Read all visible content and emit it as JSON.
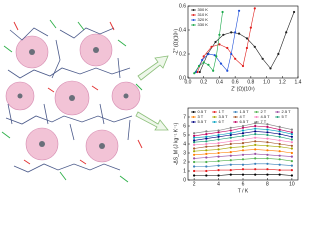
{
  "chart_data": [
    {
      "type": "scatter",
      "xlabel": "Z' (Ω)(10⁵)",
      "ylabel": "-Z'' (Ω)(10⁵)",
      "xlim": [
        0,
        1.4
      ],
      "ylim": [
        0,
        0.6
      ],
      "xticks": [
        {
          "value": 0,
          "label": "0.0"
        },
        0.2,
        0.4,
        0.6,
        0.8,
        {
          "value": 1,
          "label": "1.0"
        },
        1.2,
        1.4
      ],
      "yticks": [
        {
          "value": 0,
          "label": "0.0"
        },
        0.2,
        0.4,
        0.6
      ],
      "legend": "upper-left",
      "series": [
        {
          "name": "300 K",
          "color": "#222222",
          "x": [
            0.15,
            0.25,
            0.35,
            0.45,
            0.55,
            0.65,
            0.75,
            0.85,
            0.95,
            1.05,
            1.15,
            1.25,
            1.35
          ],
          "values": [
            0.05,
            0.2,
            0.3,
            0.36,
            0.38,
            0.37,
            0.33,
            0.26,
            0.16,
            0.08,
            0.2,
            0.38,
            0.55
          ]
        },
        {
          "name": "310 K",
          "color": "#e0201e",
          "x": [
            0.12,
            0.2,
            0.3,
            0.4,
            0.5,
            0.6,
            0.7,
            0.75,
            0.8,
            0.85
          ],
          "values": [
            0.05,
            0.18,
            0.26,
            0.28,
            0.25,
            0.16,
            0.1,
            0.25,
            0.42,
            0.58
          ]
        },
        {
          "name": "320 K",
          "color": "#1f4fd8",
          "x": [
            0.1,
            0.18,
            0.26,
            0.34,
            0.42,
            0.5,
            0.55,
            0.6,
            0.65
          ],
          "values": [
            0.05,
            0.15,
            0.2,
            0.19,
            0.12,
            0.06,
            0.2,
            0.38,
            0.56
          ]
        },
        {
          "name": "330 K",
          "color": "#1aa84a",
          "x": [
            0.08,
            0.14,
            0.2,
            0.26,
            0.32,
            0.36,
            0.4,
            0.44
          ],
          "values": [
            0.04,
            0.1,
            0.13,
            0.11,
            0.06,
            0.18,
            0.36,
            0.55
          ]
        }
      ]
    },
    {
      "type": "line",
      "xlabel": "T / K",
      "ylabel": "-ΔS_M (J kg⁻¹ K⁻¹)",
      "xlim": [
        1.5,
        10.5
      ],
      "ylim": [
        0,
        8
      ],
      "xticks": [
        2,
        4,
        6,
        8,
        10
      ],
      "yticks": [
        0,
        1,
        2,
        3,
        4,
        5,
        6,
        7
      ],
      "legend": "upper-left",
      "x": [
        2,
        3,
        4,
        5,
        6,
        7,
        8,
        9,
        10
      ],
      "series": [
        {
          "name": "0.5 T",
          "color": "#000000",
          "values": [
            0.5,
            0.5,
            0.5,
            0.6,
            0.6,
            0.6,
            0.6,
            0.6,
            0.5
          ]
        },
        {
          "name": "1 T",
          "color": "#e41a1c",
          "values": [
            1.0,
            1.0,
            1.1,
            1.1,
            1.2,
            1.2,
            1.2,
            1.1,
            1.1
          ]
        },
        {
          "name": "1.5 T",
          "color": "#377eb8",
          "values": [
            1.5,
            1.5,
            1.6,
            1.7,
            1.7,
            1.8,
            1.8,
            1.7,
            1.6
          ]
        },
        {
          "name": "2 T",
          "color": "#4daf4a",
          "values": [
            2.0,
            2.0,
            2.1,
            2.2,
            2.3,
            2.4,
            2.4,
            2.3,
            2.1
          ]
        },
        {
          "name": "2.5 T",
          "color": "#984ea3",
          "values": [
            2.4,
            2.5,
            2.6,
            2.7,
            2.8,
            2.9,
            2.8,
            2.7,
            2.6
          ]
        },
        {
          "name": "3 T",
          "color": "#ff7f00",
          "values": [
            2.8,
            2.9,
            3.0,
            3.1,
            3.3,
            3.4,
            3.3,
            3.2,
            3.0
          ]
        },
        {
          "name": "3.5 T",
          "color": "#a6a600",
          "values": [
            3.2,
            3.3,
            3.4,
            3.6,
            3.7,
            3.9,
            3.8,
            3.7,
            3.5
          ]
        },
        {
          "name": "4 T",
          "color": "#a65628",
          "values": [
            3.5,
            3.7,
            3.8,
            4.0,
            4.1,
            4.3,
            4.2,
            4.0,
            3.8
          ]
        },
        {
          "name": "4.5 T",
          "color": "#f781bf",
          "values": [
            3.9,
            4.0,
            4.1,
            4.3,
            4.5,
            4.7,
            4.6,
            4.4,
            4.2
          ]
        },
        {
          "name": "5 T",
          "color": "#1b9e77",
          "values": [
            4.2,
            4.3,
            4.5,
            4.7,
            4.9,
            5.1,
            5.0,
            4.8,
            4.5
          ]
        },
        {
          "name": "5.5 T",
          "color": "#000080",
          "values": [
            4.4,
            4.6,
            4.8,
            5.0,
            5.2,
            5.4,
            5.3,
            5.1,
            4.8
          ]
        },
        {
          "name": "6 T",
          "color": "#00a0c0",
          "values": [
            4.7,
            4.8,
            5.0,
            5.2,
            5.5,
            5.7,
            5.6,
            5.4,
            5.1
          ]
        },
        {
          "name": "6.5 T",
          "color": "#c00060",
          "values": [
            4.9,
            5.1,
            5.3,
            5.5,
            5.8,
            6.0,
            5.9,
            5.6,
            5.3
          ]
        },
        {
          "name": "7 T",
          "color": "#808080",
          "values": [
            5.2,
            5.4,
            5.5,
            5.8,
            6.0,
            6.3,
            6.2,
            5.9,
            5.6
          ]
        }
      ]
    }
  ]
}
